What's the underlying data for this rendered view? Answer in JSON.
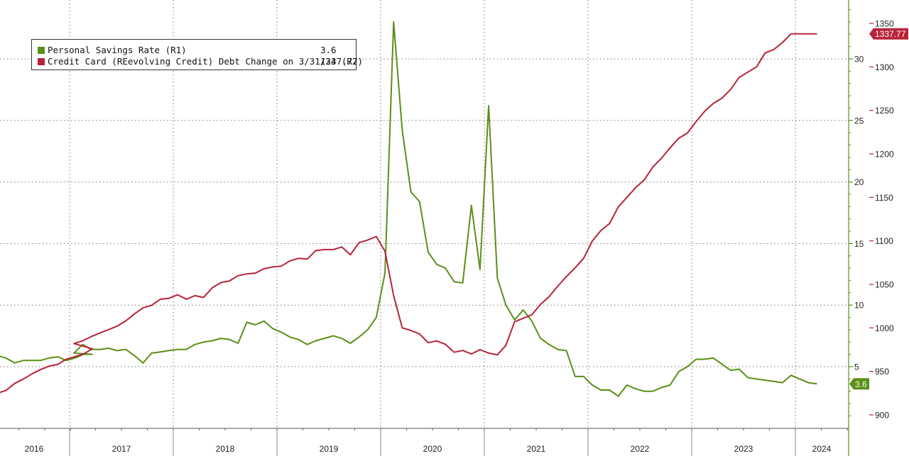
{
  "legend": {
    "savings_label": "Personal Savings Rate (R1)",
    "savings_value": "3.6",
    "credit_label": "Credit Card (REevolving Credit) Debt Change on 3/31/24 (R2)",
    "credit_value": "1337.77"
  },
  "colors": {
    "savings": "#5b8f17",
    "credit": "#b8233a",
    "grid": "#777777",
    "savings_badge": "#5b8f17",
    "credit_badge": "#b8233a"
  },
  "chart_data": {
    "type": "line",
    "x_tick_labels": [
      "2016",
      "2017",
      "2018",
      "2019",
      "2020",
      "2021",
      "2022",
      "2023",
      "2024"
    ],
    "r1_ticks": [
      5,
      10,
      15,
      20,
      25,
      30
    ],
    "r1_ylim": [
      0,
      35
    ],
    "r2_ticks": [
      900,
      950,
      1000,
      1050,
      1100,
      1150,
      1200,
      1250,
      1300,
      1350
    ],
    "r2_ylim": [
      885,
      1360
    ],
    "last_values": {
      "savings": "3.6",
      "credit": "1337.77"
    },
    "grid": true,
    "legend_position": "top-left",
    "series": [
      {
        "name": "Personal Savings Rate (R1)",
        "axis": "R1",
        "color": "#5b8f17",
        "points": [
          [
            "2016-01",
            5.9
          ],
          [
            "2016-02",
            5.7
          ],
          [
            "2016-03",
            5.3
          ],
          [
            "2016-04",
            5.5
          ],
          [
            "2016-05",
            5.5
          ],
          [
            "2016-06",
            5.5
          ],
          [
            "2016-07",
            5.7
          ],
          [
            "2016-08",
            5.8
          ],
          [
            "2016-09",
            5.5
          ],
          [
            "2016-10",
            5.7
          ],
          [
            "2016-11",
            6.0
          ],
          [
            "2016-12",
            6.0
          ],
          [
            "2017-01",
            6.1
          ],
          [
            "2017-02",
            6.8
          ],
          [
            "2017-03",
            6.4
          ],
          [
            "2017-04",
            6.4
          ],
          [
            "2017-05",
            6.5
          ],
          [
            "2017-06",
            6.3
          ],
          [
            "2017-07",
            6.4
          ],
          [
            "2017-08",
            5.9
          ],
          [
            "2017-09",
            5.3
          ],
          [
            "2017-10",
            6.1
          ],
          [
            "2017-11",
            6.2
          ],
          [
            "2017-12",
            6.3
          ],
          [
            "2018-01",
            6.4
          ],
          [
            "2018-02",
            6.4
          ],
          [
            "2018-03",
            6.8
          ],
          [
            "2018-04",
            7.0
          ],
          [
            "2018-05",
            7.1
          ],
          [
            "2018-06",
            7.3
          ],
          [
            "2018-07",
            7.2
          ],
          [
            "2018-08",
            6.9
          ],
          [
            "2018-09",
            8.6
          ],
          [
            "2018-10",
            8.4
          ],
          [
            "2018-11",
            8.7
          ],
          [
            "2018-12",
            8.1
          ],
          [
            "2019-01",
            7.8
          ],
          [
            "2019-02",
            7.4
          ],
          [
            "2019-03",
            7.2
          ],
          [
            "2019-04",
            6.8
          ],
          [
            "2019-05",
            7.1
          ],
          [
            "2019-06",
            7.3
          ],
          [
            "2019-07",
            7.5
          ],
          [
            "2019-08",
            7.3
          ],
          [
            "2019-09",
            6.9
          ],
          [
            "2019-10",
            7.4
          ],
          [
            "2019-11",
            8.0
          ],
          [
            "2019-12",
            9.0
          ],
          [
            "2020-01",
            12.6
          ],
          [
            "2020-02",
            33.0
          ],
          [
            "2020-03",
            24.2
          ],
          [
            "2020-04",
            19.2
          ],
          [
            "2020-05",
            18.4
          ],
          [
            "2020-06",
            14.3
          ],
          [
            "2020-07",
            13.3
          ],
          [
            "2020-08",
            13.0
          ],
          [
            "2020-09",
            11.9
          ],
          [
            "2020-10",
            11.8
          ],
          [
            "2020-11",
            18.1
          ],
          [
            "2020-12",
            12.9
          ],
          [
            "2021-01",
            26.2
          ],
          [
            "2021-02",
            12.2
          ],
          [
            "2021-03",
            10.0
          ],
          [
            "2021-04",
            8.8
          ],
          [
            "2021-05",
            9.6
          ],
          [
            "2021-06",
            8.7
          ],
          [
            "2021-07",
            7.3
          ],
          [
            "2021-08",
            6.8
          ],
          [
            "2021-09",
            6.4
          ],
          [
            "2021-10",
            6.3
          ],
          [
            "2021-11",
            4.2
          ],
          [
            "2021-12",
            4.2
          ],
          [
            "2022-01",
            3.5
          ],
          [
            "2022-02",
            3.1
          ],
          [
            "2022-03",
            3.1
          ],
          [
            "2022-04",
            2.6
          ],
          [
            "2022-05",
            3.5
          ],
          [
            "2022-06",
            3.2
          ],
          [
            "2022-07",
            3.0
          ],
          [
            "2022-08",
            3.0
          ],
          [
            "2022-09",
            3.3
          ],
          [
            "2022-10",
            3.5
          ],
          [
            "2022-11",
            4.6
          ],
          [
            "2022-12",
            5.0
          ],
          [
            "2023-01",
            5.6
          ],
          [
            "2023-02",
            5.6
          ],
          [
            "2023-03",
            5.7
          ],
          [
            "2023-04",
            5.2
          ],
          [
            "2023-05",
            4.7
          ],
          [
            "2023-06",
            4.8
          ],
          [
            "2023-07",
            4.1
          ],
          [
            "2023-08",
            4.0
          ],
          [
            "2023-09",
            3.9
          ],
          [
            "2023-10",
            3.8
          ],
          [
            "2023-11",
            3.7
          ],
          [
            "2023-12",
            4.3
          ],
          [
            "2024-01",
            4.0
          ],
          [
            "2024-02",
            3.7
          ],
          [
            "2024-03",
            3.6
          ]
        ]
      },
      {
        "name": "Credit Card (REevolving Credit) Debt Change on 3/31/24 (R2)",
        "axis": "R2",
        "color": "#b8233a",
        "points": [
          [
            "2016-01",
            925
          ],
          [
            "2016-02",
            928
          ],
          [
            "2016-03",
            936
          ],
          [
            "2016-04",
            941
          ],
          [
            "2016-05",
            947
          ],
          [
            "2016-06",
            952
          ],
          [
            "2016-07",
            956
          ],
          [
            "2016-08",
            958
          ],
          [
            "2016-09",
            964
          ],
          [
            "2016-10",
            967
          ],
          [
            "2016-11",
            970
          ],
          [
            "2016-12",
            976
          ],
          [
            "2017-01",
            982
          ],
          [
            "2017-02",
            985
          ],
          [
            "2017-03",
            990
          ],
          [
            "2017-04",
            994
          ],
          [
            "2017-05",
            998
          ],
          [
            "2017-06",
            1002
          ],
          [
            "2017-07",
            1008
          ],
          [
            "2017-08",
            1016
          ],
          [
            "2017-09",
            1023
          ],
          [
            "2017-10",
            1026
          ],
          [
            "2017-11",
            1033
          ],
          [
            "2017-12",
            1034
          ],
          [
            "2018-01",
            1038
          ],
          [
            "2018-02",
            1033
          ],
          [
            "2018-03",
            1037
          ],
          [
            "2018-04",
            1035
          ],
          [
            "2018-05",
            1046
          ],
          [
            "2018-06",
            1052
          ],
          [
            "2018-07",
            1054
          ],
          [
            "2018-08",
            1060
          ],
          [
            "2018-09",
            1062
          ],
          [
            "2018-10",
            1063
          ],
          [
            "2018-11",
            1068
          ],
          [
            "2018-12",
            1070
          ],
          [
            "2019-01",
            1071
          ],
          [
            "2019-02",
            1077
          ],
          [
            "2019-03",
            1080
          ],
          [
            "2019-04",
            1079
          ],
          [
            "2019-05",
            1089
          ],
          [
            "2019-06",
            1090
          ],
          [
            "2019-07",
            1090
          ],
          [
            "2019-08",
            1093
          ],
          [
            "2019-09",
            1084
          ],
          [
            "2019-10",
            1098
          ],
          [
            "2019-11",
            1101
          ],
          [
            "2019-12",
            1105
          ],
          [
            "2020-01",
            1088
          ],
          [
            "2020-02",
            1037
          ],
          [
            "2020-03",
            1000
          ],
          [
            "2020-04",
            997
          ],
          [
            "2020-05",
            993
          ],
          [
            "2020-06",
            983
          ],
          [
            "2020-07",
            985
          ],
          [
            "2020-08",
            981
          ],
          [
            "2020-09",
            972
          ],
          [
            "2020-10",
            974
          ],
          [
            "2020-11",
            970
          ],
          [
            "2020-12",
            975
          ],
          [
            "2021-01",
            971
          ],
          [
            "2021-02",
            969
          ],
          [
            "2021-03",
            980
          ],
          [
            "2021-04",
            1007
          ],
          [
            "2021-05",
            1011
          ],
          [
            "2021-06",
            1015
          ],
          [
            "2021-07",
            1027
          ],
          [
            "2021-08",
            1036
          ],
          [
            "2021-09",
            1048
          ],
          [
            "2021-10",
            1059
          ],
          [
            "2021-11",
            1069
          ],
          [
            "2021-12",
            1080
          ],
          [
            "2022-01",
            1100
          ],
          [
            "2022-02",
            1112
          ],
          [
            "2022-03",
            1120
          ],
          [
            "2022-04",
            1139
          ],
          [
            "2022-05",
            1150
          ],
          [
            "2022-06",
            1161
          ],
          [
            "2022-07",
            1170
          ],
          [
            "2022-08",
            1185
          ],
          [
            "2022-09",
            1195
          ],
          [
            "2022-10",
            1207
          ],
          [
            "2022-11",
            1218
          ],
          [
            "2022-12",
            1224
          ],
          [
            "2023-01",
            1237
          ],
          [
            "2023-02",
            1249
          ],
          [
            "2023-03",
            1258
          ],
          [
            "2023-04",
            1264
          ],
          [
            "2023-05",
            1274
          ],
          [
            "2023-06",
            1288
          ],
          [
            "2023-07",
            1294
          ],
          [
            "2023-08",
            1300
          ],
          [
            "2023-09",
            1316
          ],
          [
            "2023-10",
            1320
          ],
          [
            "2023-11",
            1328
          ],
          [
            "2023-12",
            1338
          ],
          [
            "2024-01",
            1338
          ],
          [
            "2024-02",
            1338
          ],
          [
            "2024-03",
            1338
          ]
        ]
      }
    ]
  }
}
